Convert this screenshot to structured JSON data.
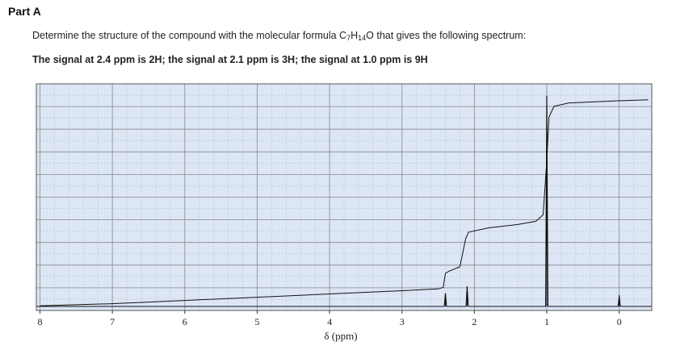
{
  "part": {
    "title": "Part A"
  },
  "question": {
    "prefix": "Determine the structure of the compound with the molecular formula C",
    "c_count": "7",
    "h_label": "H",
    "h_count": "14",
    "o_label": "O",
    "suffix": " that gives the following spectrum:"
  },
  "signal_note": "The signal at 2.4 ppm is 2H; the signal at 2.1 ppm is 3H; the signal at 1.0 ppm is 9H",
  "chart_data": {
    "type": "line",
    "title": "",
    "xlabel": "δ (ppm)",
    "ylabel": "",
    "x_reversed": true,
    "xlim": [
      8.05,
      -0.45
    ],
    "x_ticks": [
      8,
      7,
      6,
      5,
      4,
      3,
      2,
      1,
      0
    ],
    "x_tick_labels": [
      "8",
      "7",
      "6",
      "5",
      "4",
      "3",
      "2",
      "1",
      "0"
    ],
    "grid": true,
    "plot_background": "#dce6f5",
    "grid_color": "#8a8a8a",
    "trace_color": "#111111",
    "peaks": [
      {
        "ppm": 2.4,
        "integration": "2H",
        "relative_height": 0.06
      },
      {
        "ppm": 2.1,
        "integration": "3H",
        "relative_height": 0.09
      },
      {
        "ppm": 1.0,
        "integration": "9H",
        "relative_height": 0.95
      },
      {
        "ppm": 0.0,
        "integration": "",
        "relative_height": 0.05
      }
    ],
    "integral_curve": {
      "points": [
        [
          8.0,
          0.01
        ],
        [
          7.0,
          0.02
        ],
        [
          6.0,
          0.035
        ],
        [
          5.0,
          0.05
        ],
        [
          4.0,
          0.065
        ],
        [
          3.0,
          0.08
        ],
        [
          2.5,
          0.088
        ],
        [
          2.43,
          0.095
        ],
        [
          2.4,
          0.16
        ],
        [
          2.35,
          0.17
        ],
        [
          2.2,
          0.19
        ],
        [
          2.12,
          0.32
        ],
        [
          2.08,
          0.35
        ],
        [
          1.8,
          0.37
        ],
        [
          1.4,
          0.385
        ],
        [
          1.15,
          0.4
        ],
        [
          1.05,
          0.43
        ],
        [
          1.0,
          0.68
        ],
        [
          0.97,
          0.88
        ],
        [
          0.9,
          0.93
        ],
        [
          0.7,
          0.945
        ],
        [
          0.4,
          0.95
        ],
        [
          0.05,
          0.955
        ],
        [
          -0.4,
          0.96
        ]
      ]
    }
  }
}
